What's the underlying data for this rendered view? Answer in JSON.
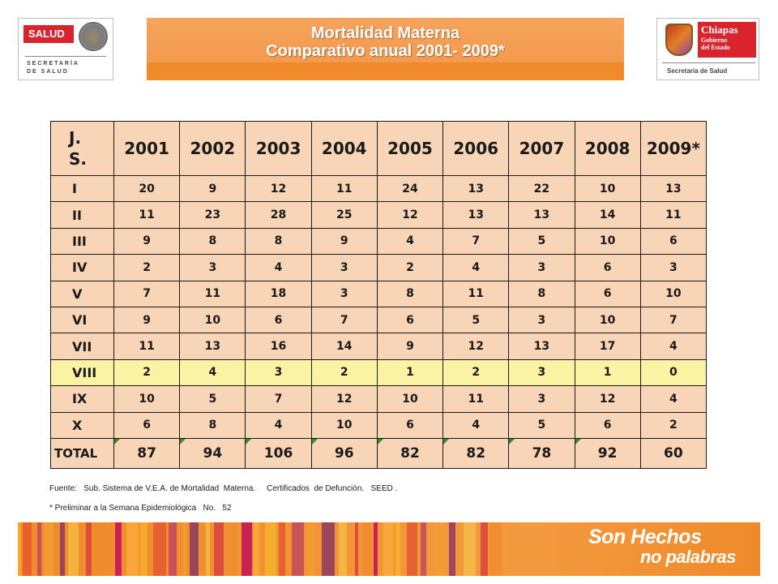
{
  "header": {
    "salud_logo": {
      "label": "SALUD",
      "sub": "SECRETARÍA\nDE SALUD"
    },
    "title_line1": "Mortalidad  Materna",
    "title_line2": "Comparativo anual 2001- 2009*",
    "chiapas_logo": {
      "name": "Chiapas",
      "gobierno": "Gobierno\ndel Estado",
      "sub": "Secretaría de Salud"
    }
  },
  "table": {
    "corner_line1": "J.",
    "corner_line2": "S.",
    "years": [
      "2001",
      "2002",
      "2003",
      "2004",
      "2005",
      "2006",
      "2007",
      "2008",
      "2009*"
    ],
    "rows": [
      {
        "label": "I",
        "values": [
          "20",
          "9",
          "12",
          "11",
          "24",
          "13",
          "22",
          "10",
          "13"
        ]
      },
      {
        "label": "II",
        "values": [
          "11",
          "23",
          "28",
          "25",
          "12",
          "13",
          "13",
          "14",
          "11"
        ]
      },
      {
        "label": "III",
        "values": [
          "9",
          "8",
          "8",
          "9",
          "4",
          "7",
          "5",
          "10",
          "6"
        ]
      },
      {
        "label": "IV",
        "values": [
          "2",
          "3",
          "4",
          "3",
          "2",
          "4",
          "3",
          "6",
          "3"
        ]
      },
      {
        "label": "V",
        "values": [
          "7",
          "11",
          "18",
          "3",
          "8",
          "11",
          "8",
          "6",
          "10"
        ]
      },
      {
        "label": "VI",
        "values": [
          "9",
          "10",
          "6",
          "7",
          "6",
          "5",
          "3",
          "10",
          "7"
        ]
      },
      {
        "label": "VII",
        "values": [
          "11",
          "13",
          "16",
          "14",
          "9",
          "12",
          "13",
          "17",
          "4"
        ]
      },
      {
        "label": "VIII",
        "values": [
          "2",
          "4",
          "3",
          "2",
          "1",
          "2",
          "3",
          "1",
          "0"
        ],
        "highlight": true
      },
      {
        "label": "IX",
        "values": [
          "10",
          "5",
          "7",
          "12",
          "10",
          "11",
          "3",
          "12",
          "4"
        ]
      },
      {
        "label": "X",
        "values": [
          "6",
          "8",
          "4",
          "10",
          "6",
          "4",
          "5",
          "6",
          "2"
        ]
      }
    ],
    "total": {
      "label": "TOTAL",
      "values": [
        "87",
        "94",
        "106",
        "96",
        "82",
        "82",
        "78",
        "92",
        "60"
      ]
    },
    "colors": {
      "cell_bg": "#f9d5b8",
      "highlight_bg": "#fbf3a4",
      "border": "#1a1a1a"
    }
  },
  "footnotes": {
    "source": "Fuente:   Sub. Sistema de V.E.A. de Mortalidad  Materna.     Certificados  de Defunción.   SEED .",
    "preliminary": "* Preliminar a la Semana Epidemiológica   No.   52"
  },
  "banner": {
    "slogan_line1": "Son Hechos",
    "slogan_line2": "no palabras",
    "color": "#f08a2a"
  }
}
